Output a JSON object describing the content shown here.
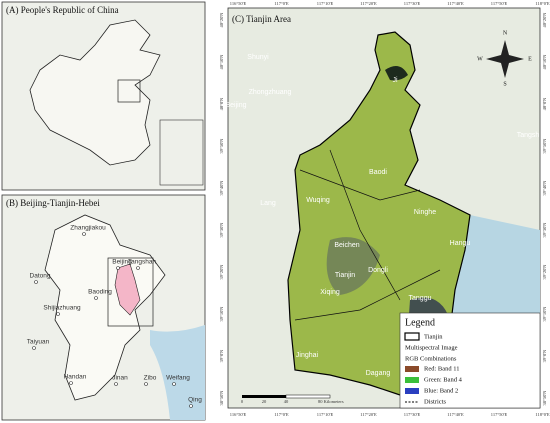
{
  "panels": {
    "a": {
      "title": "(A) People's Republic of China"
    },
    "b": {
      "title": "(B) Beijing-Tianjin-Hebei",
      "cities": [
        "Zhangjiakou",
        "Beijing",
        "Tangshan",
        "Datong",
        "Baoding",
        "Shijiazhuang",
        "Taiyuan",
        "Handan",
        "Jinan",
        "Zibo",
        "Weifang",
        "Qing"
      ]
    },
    "c": {
      "title": "(C) Tianjin Area",
      "places": [
        "Shunyi",
        "Zhongzhuang",
        "Beijing",
        "Lang",
        "Tangsh",
        "Ji",
        "Baodi",
        "Wuqing",
        "Ninghe",
        "Hangu",
        "Beichen",
        "Dongli",
        "Tianjin",
        "Xiqing",
        "Tanggu",
        "Jinghai",
        "Dagang"
      ],
      "lon_ticks": [
        "116°50'E",
        "117°0'E",
        "117°10'E",
        "117°20'E",
        "117°30'E",
        "117°40'E",
        "117°50'E",
        "118°0'E"
      ],
      "lat_ticks": [
        "40°20'N",
        "40°10'N",
        "40°0'N",
        "39°50'N",
        "39°40'N",
        "39°30'N",
        "39°20'N",
        "39°10'N",
        "39°0'N",
        "38°50'N"
      ],
      "compass": [
        "N",
        "S",
        "E",
        "W"
      ],
      "scale": [
        "0",
        "20",
        "40",
        "80 Kilometers"
      ],
      "legend": {
        "title": "Legend",
        "boundary": "Tianjin",
        "image": "Multispectral Image",
        "rgb": "RGB Combinations",
        "bands": [
          "Red: Band 11",
          "Green: Band 4",
          "Blue: Band 2"
        ],
        "districts": "Districts"
      }
    }
  }
}
